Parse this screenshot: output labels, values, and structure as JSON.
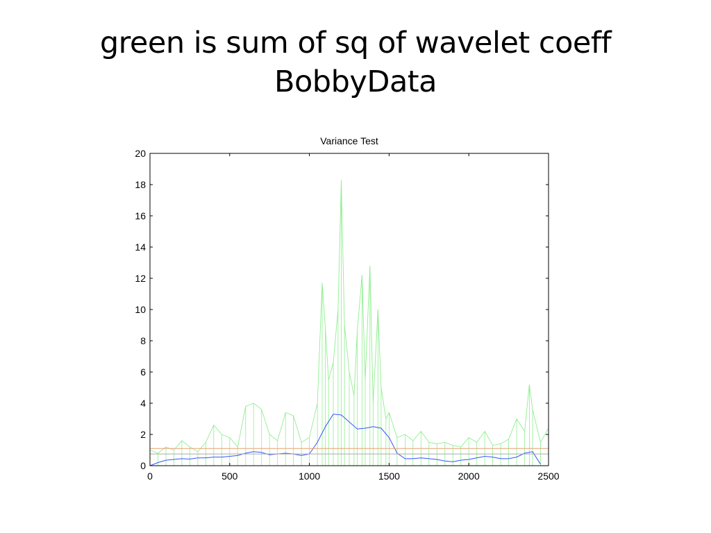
{
  "slide": {
    "title_line1": "green is sum of sq of wavelet coeff",
    "title_line2": "BobbyData"
  },
  "chart_data": {
    "type": "line",
    "title": "Variance Test",
    "xlabel": "",
    "ylabel": "",
    "xlim": [
      0,
      2500
    ],
    "ylim": [
      0,
      20
    ],
    "xticks": [
      0,
      500,
      1000,
      1500,
      2000,
      2500
    ],
    "yticks": [
      0,
      2,
      4,
      6,
      8,
      10,
      12,
      14,
      16,
      18,
      20
    ],
    "grid": false,
    "legend": "none",
    "series": [
      {
        "color": "#90ee90",
        "style": "noisy spikes",
        "x": [
          0,
          50,
          100,
          150,
          200,
          250,
          300,
          350,
          400,
          450,
          500,
          550,
          600,
          650,
          700,
          750,
          800,
          850,
          900,
          950,
          1000,
          1050,
          1080,
          1100,
          1120,
          1150,
          1180,
          1200,
          1220,
          1250,
          1280,
          1300,
          1330,
          1350,
          1380,
          1400,
          1430,
          1450,
          1480,
          1500,
          1550,
          1600,
          1650,
          1700,
          1750,
          1800,
          1850,
          1900,
          1950,
          2000,
          2050,
          2100,
          2150,
          2200,
          2250,
          2300,
          2350,
          2380,
          2400,
          2450,
          2500
        ],
        "values": [
          1.0,
          0.8,
          1.2,
          1.0,
          1.6,
          1.2,
          0.9,
          1.5,
          2.6,
          2.0,
          1.8,
          1.2,
          3.8,
          4.0,
          3.6,
          2.0,
          1.6,
          3.4,
          3.2,
          1.5,
          1.8,
          4.0,
          11.7,
          8.8,
          5.5,
          6.6,
          10.0,
          18.3,
          9.0,
          6.0,
          4.5,
          8.6,
          12.2,
          5.5,
          12.8,
          4.0,
          10.0,
          5.0,
          3.0,
          3.4,
          1.8,
          2.0,
          1.6,
          2.2,
          1.5,
          1.4,
          1.5,
          1.3,
          1.2,
          1.8,
          1.5,
          2.2,
          1.3,
          1.4,
          1.7,
          3.0,
          2.2,
          5.2,
          3.6,
          1.5,
          2.4
        ]
      },
      {
        "color": "#3355ff",
        "style": "smooth",
        "x": [
          0,
          50,
          100,
          150,
          200,
          250,
          300,
          350,
          400,
          450,
          500,
          550,
          600,
          650,
          700,
          750,
          800,
          850,
          900,
          950,
          1000,
          1050,
          1100,
          1150,
          1200,
          1250,
          1300,
          1350,
          1400,
          1450,
          1500,
          1550,
          1600,
          1650,
          1700,
          1750,
          1800,
          1850,
          1900,
          1950,
          2000,
          2050,
          2100,
          2150,
          2200,
          2250,
          2300,
          2350,
          2400,
          2450
        ],
        "values": [
          0.0,
          0.2,
          0.35,
          0.4,
          0.45,
          0.42,
          0.5,
          0.5,
          0.55,
          0.55,
          0.6,
          0.65,
          0.8,
          0.9,
          0.85,
          0.7,
          0.75,
          0.8,
          0.75,
          0.65,
          0.75,
          1.5,
          2.5,
          3.3,
          3.25,
          2.8,
          2.35,
          2.4,
          2.5,
          2.4,
          1.8,
          0.8,
          0.45,
          0.45,
          0.5,
          0.45,
          0.4,
          0.3,
          0.25,
          0.35,
          0.4,
          0.5,
          0.6,
          0.55,
          0.45,
          0.45,
          0.55,
          0.8,
          0.9,
          0.1
        ]
      },
      {
        "color": "#e8a070",
        "style": "horizontal reference",
        "x": [
          0,
          2500
        ],
        "values": [
          1.1,
          1.1
        ]
      },
      {
        "color": "#aaaaaa",
        "style": "horizontal reference",
        "x": [
          0,
          2500
        ],
        "values": [
          0.75,
          0.75
        ]
      }
    ]
  }
}
